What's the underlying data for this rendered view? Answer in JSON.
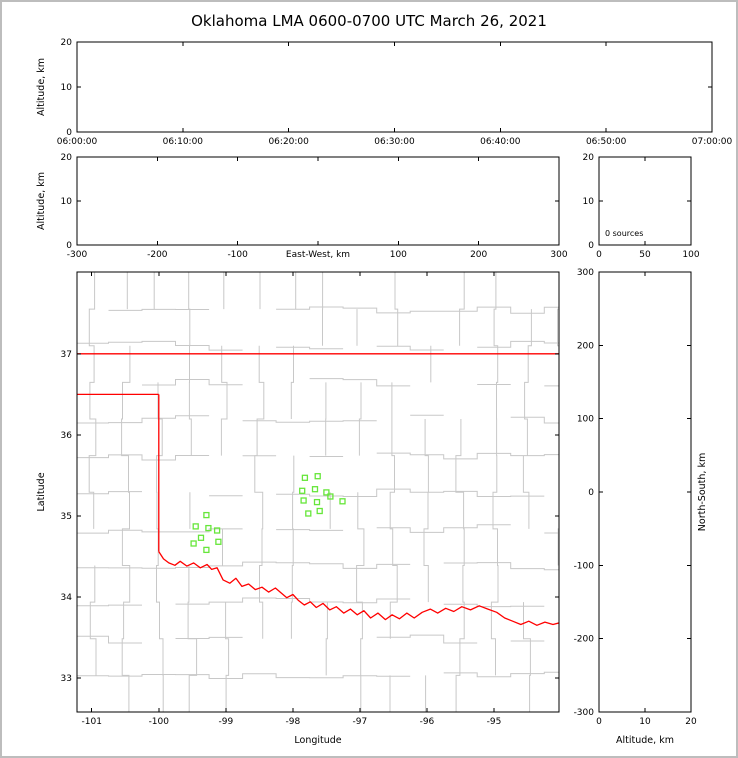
{
  "title": "Oklahoma LMA 0600-0700 UTC March 26, 2021",
  "colors": {
    "background": "#ffffff",
    "frame_border": "#bdbdbd",
    "axis": "#000000",
    "text": "#000000",
    "county_line": "#c8c8c8",
    "state_line": "#ff0000",
    "station_marker": "#66e63a"
  },
  "chart_data": [
    {
      "id": "time_altitude",
      "type": "scatter",
      "title": "",
      "xlabel": "",
      "xlabel_mode": "none",
      "ylabel": "Altitude, km",
      "ylabel_side": "left",
      "xlim": [
        0,
        3600
      ],
      "xticks": [
        0,
        600,
        1200,
        1800,
        2400,
        3000,
        3600
      ],
      "xtick_labels": [
        "06:00:00",
        "06:10:00",
        "06:20:00",
        "06:30:00",
        "06:40:00",
        "06:50:00",
        "07:00:00"
      ],
      "ylim": [
        0,
        20
      ],
      "yticks": [
        0,
        10,
        20
      ],
      "ytick_labels": [
        "0",
        "10",
        "20"
      ],
      "points": []
    },
    {
      "id": "east_west_altitude",
      "type": "scatter",
      "title": "",
      "xlabel": "East-West, km",
      "xlabel_mode": "inline",
      "ylabel": "Altitude, km",
      "ylabel_side": "left",
      "xlim": [
        -300,
        300
      ],
      "xticks": [
        -300,
        -200,
        -100,
        0,
        100,
        200,
        300
      ],
      "xtick_labels": [
        "-300",
        "-200",
        "-100",
        "",
        "100",
        "200",
        "300"
      ],
      "ylim": [
        0,
        20
      ],
      "yticks": [
        0,
        10,
        20
      ],
      "ytick_labels": [
        "0",
        "10",
        "20"
      ],
      "points": []
    },
    {
      "id": "altitude_histogram",
      "type": "line",
      "title": "",
      "xlabel": "",
      "xlabel_mode": "none",
      "ylabel": "",
      "xlim": [
        0,
        100
      ],
      "xticks": [
        0,
        50,
        100
      ],
      "xtick_labels": [
        "0",
        "50",
        "100"
      ],
      "ylim": [
        0,
        20
      ],
      "yticks": [
        0,
        10,
        20
      ],
      "ytick_labels": [
        "0",
        "10",
        "20"
      ],
      "annotation": "0 sources",
      "points": []
    },
    {
      "id": "plan_view",
      "type": "scatter",
      "title": "",
      "xlabel": "Longitude",
      "xlabel_mode": "below",
      "ylabel": "Latitude",
      "ylabel_side": "left",
      "xlim": [
        -101.22,
        -94.03
      ],
      "xticks": [
        -101,
        -100,
        -99,
        -98,
        -97,
        -96,
        -95
      ],
      "xtick_labels": [
        "-101",
        "-100",
        "-99",
        "-98",
        "-97",
        "-96",
        "-95"
      ],
      "ylim": [
        32.58,
        38.01
      ],
      "yticks": [
        33,
        34,
        35,
        36,
        37
      ],
      "ytick_labels": [
        "33",
        "34",
        "35",
        "36",
        "37"
      ],
      "show_county_boundaries": true,
      "stations": [
        [
          -97.82,
          35.47
        ],
        [
          -97.63,
          35.49
        ],
        [
          -97.86,
          35.31
        ],
        [
          -97.67,
          35.33
        ],
        [
          -97.84,
          35.19
        ],
        [
          -97.64,
          35.17
        ],
        [
          -97.5,
          35.29
        ],
        [
          -97.44,
          35.24
        ],
        [
          -97.26,
          35.18
        ],
        [
          -97.77,
          35.03
        ],
        [
          -97.6,
          35.06
        ],
        [
          -99.29,
          35.01
        ],
        [
          -99.45,
          34.87
        ],
        [
          -99.26,
          34.85
        ],
        [
          -99.13,
          34.82
        ],
        [
          -99.37,
          34.73
        ],
        [
          -99.48,
          34.66
        ],
        [
          -99.29,
          34.58
        ],
        [
          -99.11,
          34.68
        ]
      ],
      "state_border": [
        {
          "name": "kansas-oklahoma-border",
          "points": [
            [
              -101.22,
              37.0
            ],
            [
              -94.03,
              37.0
            ]
          ]
        },
        {
          "name": "panhandle-south-border",
          "points": [
            [
              -101.22,
              36.5
            ],
            [
              -100.0,
              36.5
            ]
          ]
        },
        {
          "name": "oklahoma-west-border",
          "points": [
            [
              -100.0,
              36.5
            ],
            [
              -100.0,
              34.56
            ]
          ]
        },
        {
          "name": "red-river-border",
          "points": [
            [
              -100.0,
              34.56
            ],
            [
              -99.93,
              34.47
            ],
            [
              -99.85,
              34.42
            ],
            [
              -99.76,
              34.39
            ],
            [
              -99.68,
              34.44
            ],
            [
              -99.58,
              34.38
            ],
            [
              -99.48,
              34.42
            ],
            [
              -99.38,
              34.36
            ],
            [
              -99.28,
              34.4
            ],
            [
              -99.21,
              34.34
            ],
            [
              -99.13,
              34.36
            ],
            [
              -99.04,
              34.21
            ],
            [
              -98.94,
              34.17
            ],
            [
              -98.85,
              34.23
            ],
            [
              -98.76,
              34.13
            ],
            [
              -98.66,
              34.16
            ],
            [
              -98.56,
              34.09
            ],
            [
              -98.46,
              34.12
            ],
            [
              -98.36,
              34.06
            ],
            [
              -98.26,
              34.11
            ],
            [
              -98.16,
              34.04
            ],
            [
              -98.09,
              33.99
            ],
            [
              -98.0,
              34.03
            ],
            [
              -97.92,
              33.96
            ],
            [
              -97.83,
              33.9
            ],
            [
              -97.74,
              33.94
            ],
            [
              -97.65,
              33.87
            ],
            [
              -97.55,
              33.92
            ],
            [
              -97.45,
              33.84
            ],
            [
              -97.35,
              33.88
            ],
            [
              -97.24,
              33.8
            ],
            [
              -97.14,
              33.85
            ],
            [
              -97.04,
              33.78
            ],
            [
              -96.94,
              33.83
            ],
            [
              -96.84,
              33.74
            ],
            [
              -96.73,
              33.8
            ],
            [
              -96.62,
              33.72
            ],
            [
              -96.52,
              33.78
            ],
            [
              -96.41,
              33.73
            ],
            [
              -96.3,
              33.8
            ],
            [
              -96.19,
              33.74
            ],
            [
              -96.07,
              33.81
            ],
            [
              -95.95,
              33.85
            ],
            [
              -95.84,
              33.8
            ],
            [
              -95.72,
              33.86
            ],
            [
              -95.6,
              33.82
            ],
            [
              -95.48,
              33.88
            ],
            [
              -95.35,
              33.84
            ],
            [
              -95.22,
              33.89
            ],
            [
              -95.09,
              33.85
            ],
            [
              -94.96,
              33.81
            ],
            [
              -94.84,
              33.74
            ],
            [
              -94.72,
              33.7
            ],
            [
              -94.6,
              33.66
            ],
            [
              -94.48,
              33.7
            ],
            [
              -94.36,
              33.65
            ],
            [
              -94.24,
              33.69
            ],
            [
              -94.12,
              33.66
            ],
            [
              -94.03,
              33.68
            ]
          ]
        }
      ]
    },
    {
      "id": "north_south_altitude",
      "type": "scatter",
      "title": "",
      "xlabel": "Altitude, km",
      "xlabel_mode": "below",
      "ylabel": "North-South, km",
      "ylabel_side": "right",
      "xlim": [
        0,
        20
      ],
      "xticks": [
        0,
        10,
        20
      ],
      "xtick_labels": [
        "0",
        "10",
        "20"
      ],
      "ylim": [
        -300,
        300
      ],
      "yticks": [
        300,
        200,
        100,
        0,
        -100,
        -200,
        -300
      ],
      "ytick_labels": [
        "300",
        "200",
        "100",
        "0",
        "-100",
        "-200",
        "-300"
      ],
      "points": []
    }
  ]
}
